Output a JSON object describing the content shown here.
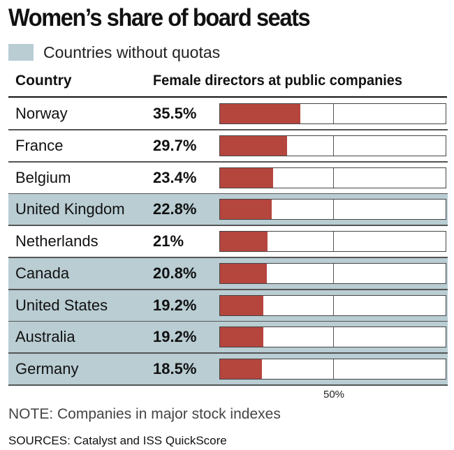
{
  "colors": {
    "bar": "#b5463e",
    "no_quota_highlight": "#b9cdd3"
  },
  "chart_data": {
    "type": "bar",
    "orientation": "horizontal",
    "title": "Women’s share of board seats",
    "legend": {
      "label": "Countries without quotas",
      "placement": "top-left"
    },
    "columns": {
      "category": "Country",
      "value": "Female directors at public companies"
    },
    "xlim": [
      0,
      100
    ],
    "tick_label": "50%",
    "rows": [
      {
        "country": "Norway",
        "value": 35.5,
        "label": "35.5%",
        "no_quota": false
      },
      {
        "country": "France",
        "value": 29.7,
        "label": "29.7%",
        "no_quota": false
      },
      {
        "country": "Belgium",
        "value": 23.4,
        "label": "23.4%",
        "no_quota": false
      },
      {
        "country": "United Kingdom",
        "value": 22.8,
        "label": "22.8%",
        "no_quota": true
      },
      {
        "country": "Netherlands",
        "value": 21,
        "label": "21%",
        "no_quota": false
      },
      {
        "country": "Canada",
        "value": 20.8,
        "label": "20.8%",
        "no_quota": true
      },
      {
        "country": "United States",
        "value": 19.2,
        "label": "19.2%",
        "no_quota": true
      },
      {
        "country": "Australia",
        "value": 19.2,
        "label": "19.2%",
        "no_quota": true
      },
      {
        "country": "Germany",
        "value": 18.5,
        "label": "18.5%",
        "no_quota": true
      }
    ],
    "note": "NOTE: Companies in major stock indexes",
    "sources": "SOURCES: Catalyst and ISS QuickScore"
  }
}
